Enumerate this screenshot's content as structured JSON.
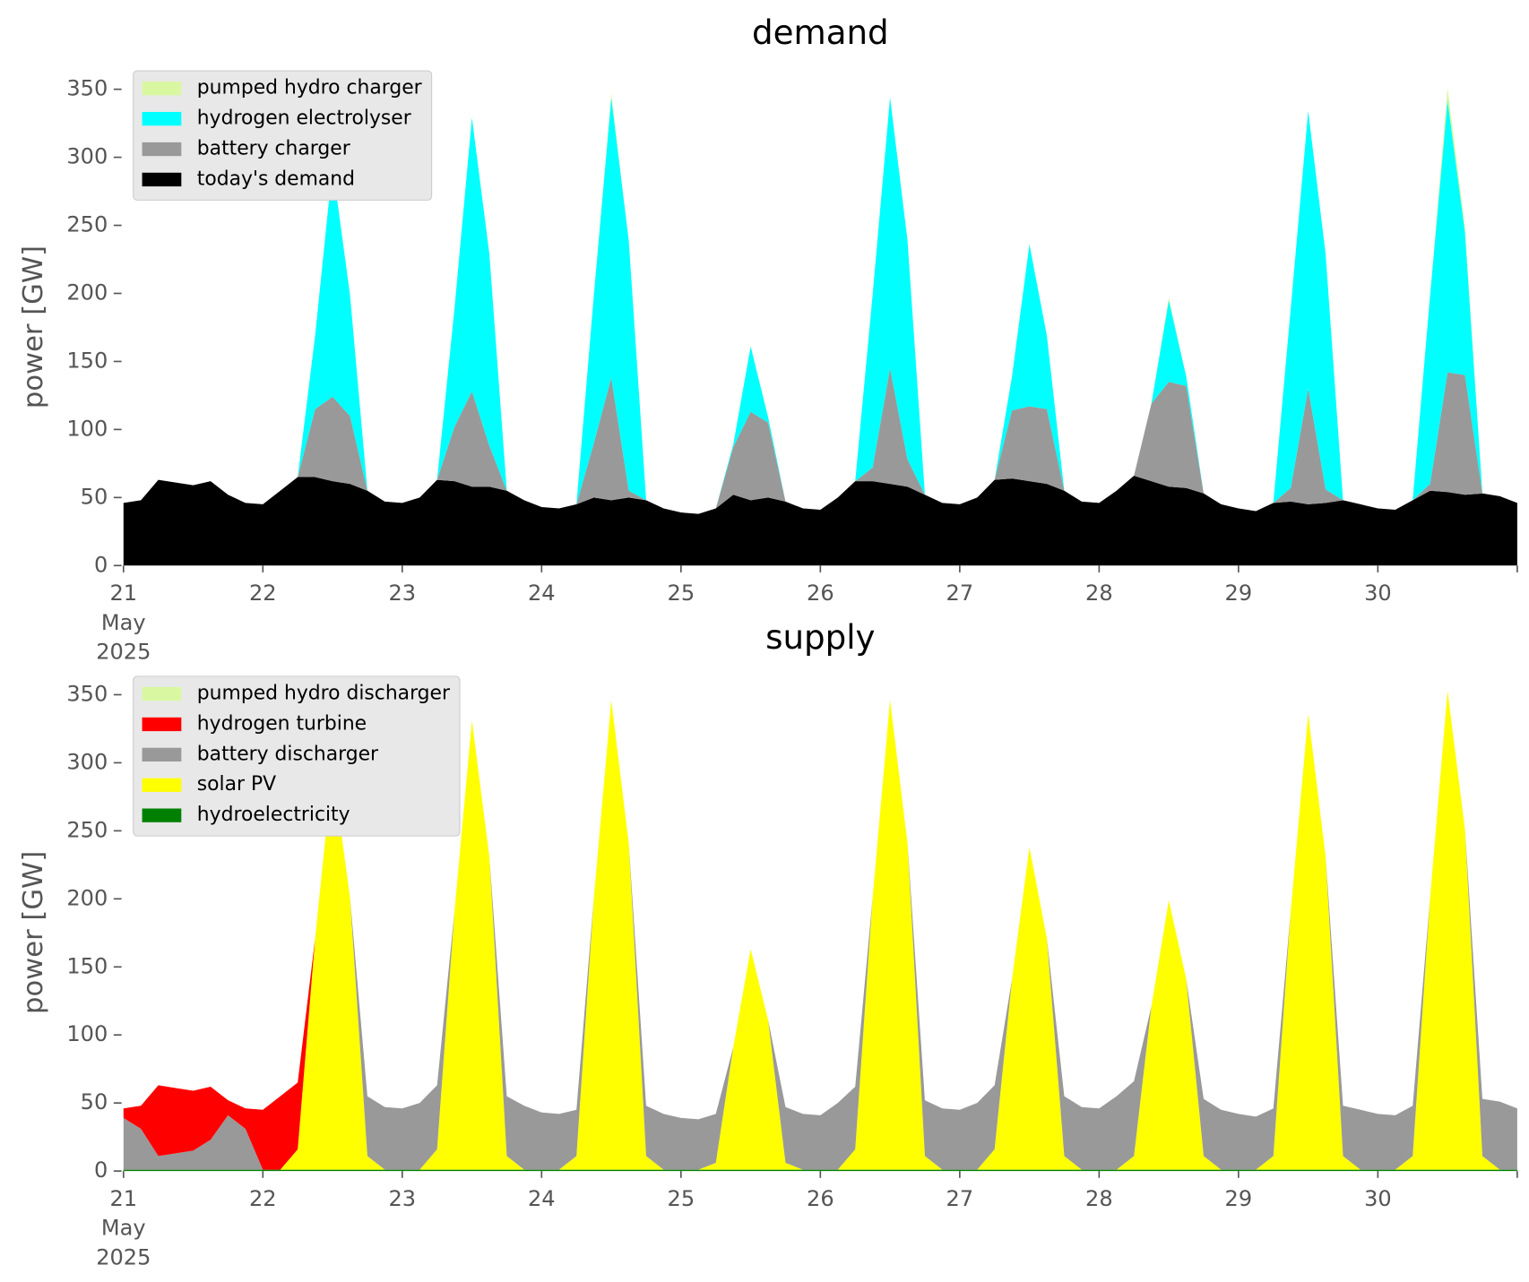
{
  "chart_data": [
    {
      "type": "stacked_area",
      "title": "demand",
      "ylabel": "power [GW]",
      "legend": "upper left",
      "xlim": [
        21,
        31
      ],
      "ylim": [
        0,
        365
      ],
      "xticks": [
        {
          "value": 21,
          "label": "21\nMay\n2025"
        },
        22,
        23,
        24,
        25,
        26,
        27,
        28,
        29,
        30,
        {
          "value": 31,
          "label": null
        }
      ],
      "yticks": [
        0,
        50,
        100,
        150,
        200,
        250,
        300,
        350
      ],
      "x": [
        21,
        21.125,
        21.25,
        21.375,
        21.5,
        21.625,
        21.75,
        21.875,
        22,
        22.125,
        22.25,
        22.375,
        22.5,
        22.625,
        22.75,
        22.875,
        23,
        23.125,
        23.25,
        23.375,
        23.5,
        23.625,
        23.75,
        23.875,
        24,
        24.125,
        24.25,
        24.375,
        24.5,
        24.625,
        24.75,
        24.875,
        25,
        25.125,
        25.25,
        25.375,
        25.5,
        25.625,
        25.75,
        25.875,
        26,
        26.125,
        26.25,
        26.375,
        26.5,
        26.625,
        26.75,
        26.875,
        27,
        27.125,
        27.25,
        27.375,
        27.5,
        27.625,
        27.75,
        27.875,
        28,
        28.125,
        28.25,
        28.375,
        28.5,
        28.625,
        28.75,
        28.875,
        29,
        29.125,
        29.25,
        29.375,
        29.5,
        29.625,
        29.75,
        29.875,
        30,
        30.125,
        30.25,
        30.375,
        30.5,
        30.625,
        30.75,
        30.875,
        31
      ],
      "series": [
        {
          "name": "today's demand",
          "color": "#000000",
          "values": [
            46,
            48,
            63,
            61,
            59,
            62,
            52,
            46,
            45,
            55,
            65,
            65,
            62,
            60,
            55,
            47,
            46,
            50,
            63,
            62,
            58,
            58,
            55,
            48,
            43,
            42,
            45,
            50,
            48,
            50,
            48,
            42,
            39,
            38,
            42,
            52,
            48,
            50,
            47,
            42,
            41,
            50,
            62,
            62,
            60,
            58,
            52,
            46,
            45,
            50,
            63,
            64,
            62,
            60,
            55,
            47,
            46,
            55,
            66,
            62,
            58,
            57,
            53,
            45,
            42,
            40,
            46,
            47,
            45,
            46,
            48,
            45,
            42,
            41,
            48,
            55,
            54,
            52,
            53,
            51,
            46
          ]
        },
        {
          "name": "battery charger",
          "color": "#999999",
          "values": [
            0,
            0,
            0,
            0,
            0,
            0,
            0,
            0,
            0,
            0,
            0,
            50,
            62,
            50,
            0,
            0,
            0,
            0,
            0,
            40,
            70,
            30,
            0,
            0,
            0,
            0,
            0,
            40,
            90,
            5,
            0,
            0,
            0,
            0,
            0,
            35,
            65,
            55,
            0,
            0,
            0,
            0,
            0,
            10,
            85,
            20,
            0,
            0,
            0,
            0,
            0,
            50,
            55,
            55,
            0,
            0,
            0,
            0,
            0,
            57,
            77,
            75,
            0,
            0,
            0,
            0,
            0,
            10,
            85,
            10,
            0,
            0,
            0,
            0,
            0,
            5,
            88,
            88,
            0,
            0,
            0
          ]
        },
        {
          "name": "hydrogen electrolyser",
          "color": "#00ffff",
          "values": [
            0,
            0,
            0,
            0,
            0,
            0,
            0,
            0,
            0,
            0,
            0,
            54,
            170,
            89,
            0,
            0,
            0,
            0,
            0,
            87,
            201,
            141,
            0,
            0,
            0,
            0,
            0,
            109,
            206,
            184,
            0,
            0,
            0,
            0,
            0,
            2,
            48,
            4,
            0,
            0,
            0,
            0,
            0,
            127,
            199,
            161,
            0,
            0,
            0,
            0,
            0,
            25,
            119,
            54,
            0,
            0,
            0,
            0,
            0,
            0,
            60,
            7,
            0,
            0,
            0,
            0,
            0,
            132,
            204,
            173,
            0,
            0,
            0,
            0,
            0,
            139,
            200,
            105,
            0,
            0,
            0
          ]
        },
        {
          "name": "pumped hydro charger",
          "color": "#d9f7a1",
          "values": [
            0,
            0,
            0,
            0,
            0,
            0,
            0,
            0,
            0,
            0,
            0,
            0,
            0,
            0,
            0,
            0,
            0,
            0,
            0,
            0,
            0,
            0,
            0,
            0,
            0,
            0,
            0,
            0,
            3,
            0,
            0,
            0,
            0,
            0,
            0,
            0,
            0,
            0,
            0,
            0,
            0,
            0,
            0,
            0,
            0,
            0,
            0,
            0,
            0,
            0,
            0,
            0,
            0,
            0,
            0,
            0,
            0,
            0,
            0,
            0,
            2,
            0,
            0,
            0,
            0,
            0,
            0,
            0,
            0,
            0,
            0,
            0,
            0,
            0,
            0,
            0,
            9,
            4,
            0,
            0,
            0
          ]
        }
      ]
    },
    {
      "type": "stacked_area",
      "title": "supply",
      "ylabel": "power [GW]",
      "legend": "upper left",
      "xlim": [
        21,
        31
      ],
      "ylim": [
        0,
        365
      ],
      "xticks": [
        {
          "value": 21,
          "label": "21\nMay\n2025"
        },
        22,
        23,
        24,
        25,
        26,
        27,
        28,
        29,
        30,
        {
          "value": 31,
          "label": null
        }
      ],
      "yticks": [
        0,
        50,
        100,
        150,
        200,
        250,
        300,
        350
      ],
      "x": [
        21,
        21.125,
        21.25,
        21.375,
        21.5,
        21.625,
        21.75,
        21.875,
        22,
        22.125,
        22.25,
        22.375,
        22.5,
        22.625,
        22.75,
        22.875,
        23,
        23.125,
        23.25,
        23.375,
        23.5,
        23.625,
        23.75,
        23.875,
        24,
        24.125,
        24.25,
        24.375,
        24.5,
        24.625,
        24.75,
        24.875,
        25,
        25.125,
        25.25,
        25.375,
        25.5,
        25.625,
        25.75,
        25.875,
        26,
        26.125,
        26.25,
        26.375,
        26.5,
        26.625,
        26.75,
        26.875,
        27,
        27.125,
        27.25,
        27.375,
        27.5,
        27.625,
        27.75,
        27.875,
        28,
        28.125,
        28.25,
        28.375,
        28.5,
        28.625,
        28.75,
        28.875,
        29,
        29.125,
        29.25,
        29.375,
        29.5,
        29.625,
        29.75,
        29.875,
        30,
        30.125,
        30.25,
        30.375,
        30.5,
        30.625,
        30.75,
        30.875,
        31
      ],
      "series": [
        {
          "name": "hydroelectricity",
          "color": "#008000",
          "values": [
            1,
            1,
            1,
            1,
            1,
            1,
            1,
            1,
            1,
            1,
            1,
            1,
            1,
            1,
            1,
            1,
            1,
            1,
            1,
            1,
            1,
            1,
            1,
            1,
            1,
            1,
            1,
            1,
            1,
            1,
            1,
            1,
            1,
            1,
            1,
            1,
            1,
            1,
            1,
            1,
            1,
            1,
            1,
            1,
            1,
            1,
            1,
            1,
            1,
            1,
            1,
            1,
            1,
            1,
            1,
            1,
            1,
            1,
            1,
            1,
            1,
            1,
            1,
            1,
            1,
            1,
            1,
            1,
            1,
            1,
            1,
            1,
            1,
            1,
            1,
            1,
            1,
            1,
            1,
            1,
            1
          ]
        },
        {
          "name": "solar PV",
          "color": "#ffff00",
          "values": [
            0,
            0,
            0,
            0,
            0,
            0,
            0,
            0,
            0,
            0,
            15,
            170,
            295,
            200,
            10,
            0,
            0,
            0,
            15,
            190,
            330,
            230,
            10,
            0,
            0,
            0,
            10,
            200,
            345,
            240,
            10,
            0,
            0,
            0,
            5,
            90,
            162,
            110,
            5,
            0,
            0,
            0,
            15,
            200,
            345,
            240,
            10,
            0,
            0,
            0,
            15,
            140,
            237,
            170,
            10,
            0,
            0,
            0,
            10,
            120,
            198,
            140,
            10,
            0,
            0,
            0,
            10,
            190,
            335,
            230,
            10,
            0,
            0,
            0,
            10,
            200,
            352,
            250,
            10,
            0,
            0
          ]
        },
        {
          "name": "battery discharger",
          "color": "#999999",
          "values": [
            38,
            30,
            10,
            12,
            14,
            22,
            40,
            30,
            0,
            0,
            0,
            0,
            0,
            0,
            44,
            46,
            45,
            49,
            47,
            0,
            0,
            0,
            44,
            47,
            42,
            41,
            34,
            0,
            0,
            0,
            37,
            41,
            38,
            37,
            36,
            0,
            0,
            0,
            41,
            41,
            40,
            49,
            46,
            0,
            0,
            0,
            41,
            45,
            44,
            49,
            47,
            0,
            0,
            0,
            44,
            46,
            45,
            54,
            55,
            0,
            0,
            0,
            42,
            44,
            41,
            39,
            35,
            0,
            0,
            0,
            37,
            44,
            41,
            40,
            37,
            0,
            0,
            0,
            42,
            50,
            45
          ]
        },
        {
          "name": "hydrogen turbine",
          "color": "#ff0000",
          "values": [
            7,
            17,
            52,
            48,
            44,
            39,
            11,
            15,
            44,
            54,
            49,
            0,
            0,
            0,
            0,
            0,
            0,
            0,
            0,
            0,
            0,
            0,
            0,
            0,
            0,
            0,
            0,
            0,
            0,
            0,
            0,
            0,
            0,
            0,
            0,
            0,
            0,
            0,
            0,
            0,
            0,
            0,
            0,
            0,
            0,
            0,
            0,
            0,
            0,
            0,
            0,
            0,
            0,
            0,
            0,
            0,
            0,
            0,
            0,
            0,
            0,
            0,
            0,
            0,
            0,
            0,
            0,
            0,
            0,
            0,
            0,
            0,
            0,
            0,
            0,
            0,
            0,
            0,
            0,
            0,
            0
          ]
        },
        {
          "name": "pumped hydro discharger",
          "color": "#d9f7a1",
          "values": [
            0,
            0,
            0,
            0,
            0,
            0,
            0,
            0,
            0,
            0,
            0,
            0,
            0,
            0,
            0,
            0,
            0,
            0,
            0,
            0,
            0,
            0,
            0,
            0,
            0,
            0,
            0,
            0,
            0,
            0,
            0,
            0,
            0,
            0,
            0,
            0,
            0,
            0,
            0,
            0,
            0,
            0,
            0,
            0,
            0,
            0,
            0,
            0,
            0,
            0,
            0,
            0,
            0,
            0,
            0,
            0,
            0,
            0,
            0,
            0,
            0,
            0,
            0,
            0,
            0,
            0,
            0,
            0,
            0,
            0,
            0,
            0,
            0,
            0,
            0,
            0,
            0,
            0,
            0,
            0,
            0
          ]
        }
      ]
    }
  ]
}
